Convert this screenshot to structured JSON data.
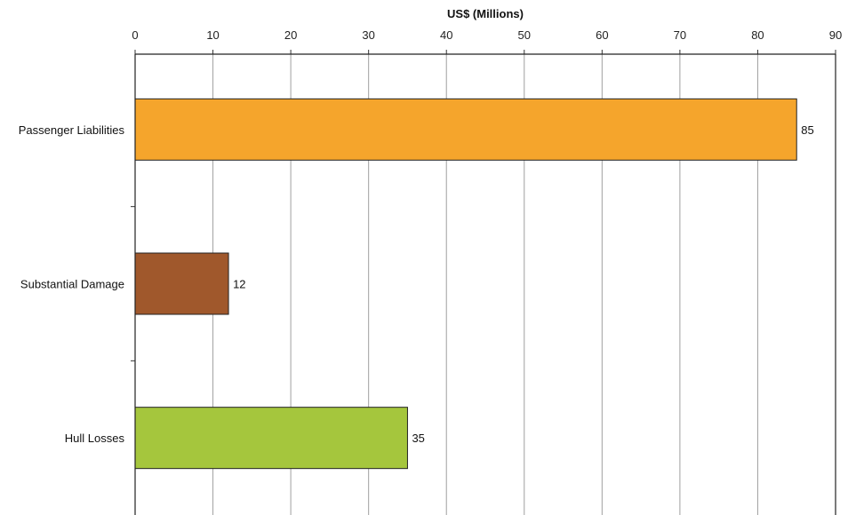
{
  "chart_data": {
    "type": "bar",
    "orientation": "horizontal",
    "title": "",
    "xlabel": "US$ (Millions)",
    "ylabel": "",
    "xlim": [
      0,
      90
    ],
    "x_ticks": [
      0,
      10,
      20,
      30,
      40,
      50,
      60,
      70,
      80,
      90
    ],
    "x_axis_position": "top",
    "grid": true,
    "legend": "none",
    "categories": [
      "Passenger Liabilities",
      "Substantial Damage",
      "Hull Losses"
    ],
    "values": [
      85,
      12,
      35
    ],
    "data_labels": [
      "85",
      "12",
      "35"
    ],
    "colors": [
      "#F5A52C",
      "#A0582C",
      "#A5C63D"
    ]
  }
}
